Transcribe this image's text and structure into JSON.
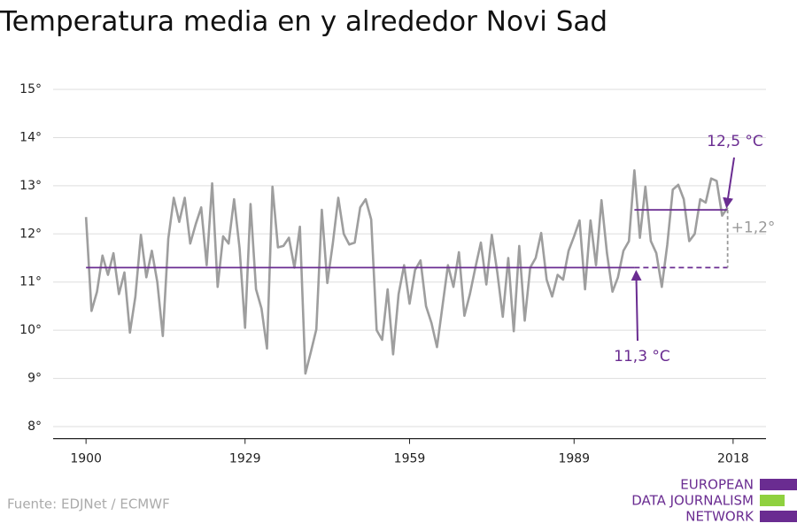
{
  "chart_data": {
    "type": "line",
    "title": "Temperatura media en y alrededor Novi Sad",
    "source": "Fuente: EDJNet / ECMWF",
    "logo": [
      "EUROPEAN",
      "DATA JOURNALISM",
      "NETWORK"
    ],
    "x": [
      1900,
      1901,
      1902,
      1903,
      1904,
      1905,
      1906,
      1907,
      1908,
      1909,
      1910,
      1911,
      1912,
      1913,
      1914,
      1915,
      1916,
      1917,
      1918,
      1919,
      1920,
      1921,
      1922,
      1923,
      1924,
      1925,
      1926,
      1927,
      1928,
      1929,
      1930,
      1931,
      1932,
      1933,
      1934,
      1935,
      1936,
      1937,
      1938,
      1939,
      1940,
      1941,
      1942,
      1943,
      1944,
      1945,
      1946,
      1947,
      1948,
      1949,
      1950,
      1951,
      1952,
      1953,
      1954,
      1955,
      1956,
      1957,
      1958,
      1959,
      1960,
      1961,
      1962,
      1963,
      1964,
      1965,
      1966,
      1967,
      1968,
      1969,
      1970,
      1971,
      1972,
      1973,
      1974,
      1975,
      1976,
      1977,
      1978,
      1979,
      1980,
      1981,
      1982,
      1983,
      1984,
      1985,
      1986,
      1987,
      1988,
      1989,
      1990,
      1991,
      1992,
      1993,
      1994,
      1995,
      1996,
      1997,
      1998,
      1999,
      2000,
      2001,
      2002,
      2003,
      2004,
      2005,
      2006,
      2007,
      2008,
      2009,
      2010,
      2011,
      2012,
      2013,
      2014,
      2015,
      2016,
      2017
    ],
    "series": [
      {
        "color": "#9e9e9e",
        "values": [
          12.35,
          10.4,
          10.8,
          11.55,
          11.15,
          11.6,
          10.75,
          11.2,
          9.95,
          10.7,
          11.98,
          11.1,
          11.65,
          11.0,
          9.88,
          11.9,
          12.75,
          12.25,
          12.75,
          11.8,
          12.2,
          12.55,
          11.35,
          13.05,
          10.9,
          11.95,
          11.8,
          12.72,
          11.7,
          10.05,
          12.62,
          10.85,
          10.45,
          9.62,
          12.98,
          11.72,
          11.75,
          11.92,
          11.3,
          12.15,
          9.1,
          9.55,
          10.02,
          12.5,
          10.98,
          11.8,
          12.75,
          12.0,
          11.78,
          11.82,
          12.55,
          12.72,
          12.3,
          10.0,
          9.8,
          10.85,
          9.5,
          10.75,
          11.35,
          10.55,
          11.25,
          11.45,
          10.5,
          10.15,
          9.65,
          10.5,
          11.35,
          10.9,
          11.62,
          10.3,
          10.75,
          11.3,
          11.82,
          10.95,
          11.98,
          11.2,
          10.28,
          11.5,
          9.98,
          11.75,
          10.2,
          11.3,
          11.5,
          12.02,
          11.05,
          10.7,
          11.15,
          11.05,
          11.65,
          11.95,
          12.28,
          10.85,
          12.28,
          11.35,
          12.7,
          11.6,
          10.8,
          11.1,
          11.65,
          11.85,
          13.32,
          11.92,
          12.98,
          11.85,
          11.6,
          10.9,
          11.78,
          12.92,
          13.02,
          12.72,
          11.85,
          12.0,
          12.72,
          12.65,
          13.15,
          13.1,
          12.38,
          12.55
        ]
      }
    ],
    "baseline": {
      "value": 11.3,
      "label": "11,3 °C",
      "from": 1900,
      "to": 2017,
      "color": "#6a2c91"
    },
    "recent": {
      "value": 12.5,
      "label": "12,5 °C",
      "from": 2000,
      "to": 2017,
      "color": "#6a2c91"
    },
    "difference_label": "+1,2°",
    "xlim": [
      1894,
      2024
    ],
    "xticks": [
      1900,
      1929,
      1959,
      1989,
      2018
    ],
    "ylim": [
      7.75,
      15.1
    ],
    "yticks": [
      {
        "value": 8,
        "label": "8°"
      },
      {
        "value": 9,
        "label": "9°"
      },
      {
        "value": 10,
        "label": "10°"
      },
      {
        "value": 11,
        "label": "11°"
      },
      {
        "value": 12,
        "label": "12°"
      },
      {
        "value": 13,
        "label": "13°"
      },
      {
        "value": 14,
        "label": "14°"
      },
      {
        "value": 15,
        "label": "15°"
      }
    ],
    "grid": true
  }
}
